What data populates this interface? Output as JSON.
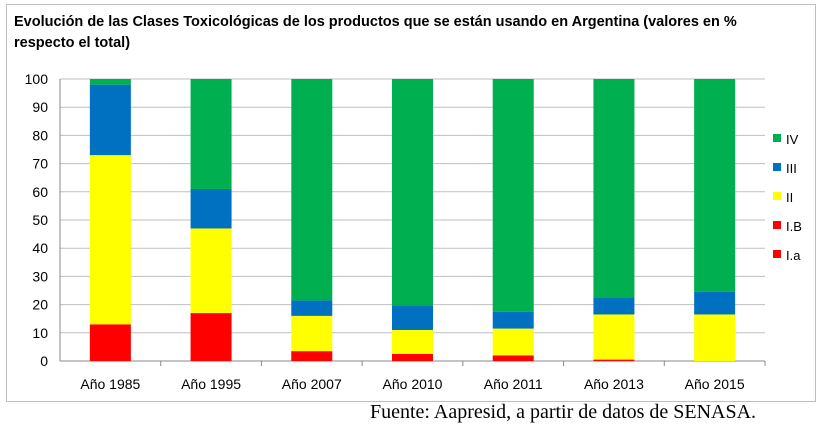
{
  "chart_data": {
    "type": "bar",
    "stacked": true,
    "title": "Evolución de las Clases Toxicológicas de los productos que se están usando en Argentina (valores en % respecto el total)",
    "categories": [
      "Año 1985",
      "Año 1995",
      "Año 2007",
      "Año 2010",
      "Año 2011",
      "Año 2013",
      "Año 2015"
    ],
    "series": [
      {
        "name": "I.a",
        "color": "#ff0000",
        "values": [
          0,
          0,
          0,
          0,
          0,
          0,
          0
        ]
      },
      {
        "name": "I.B",
        "color": "#ff0000",
        "values": [
          13,
          17,
          3.5,
          2.5,
          2,
          0.5,
          0
        ]
      },
      {
        "name": "II",
        "color": "#ffff00",
        "values": [
          60,
          30,
          12.5,
          8.5,
          9.5,
          16,
          16.5
        ]
      },
      {
        "name": "III",
        "color": "#0070c0",
        "values": [
          25,
          14,
          5.5,
          8.5,
          6,
          6,
          8
        ]
      },
      {
        "name": "IV",
        "color": "#00b050",
        "values": [
          2,
          39,
          78.5,
          80.5,
          82.5,
          77.5,
          75.5
        ]
      }
    ],
    "legend_order": [
      "IV",
      "III",
      "II",
      "I.B",
      "I.a"
    ],
    "legend_position": "right",
    "yticks": [
      0,
      10,
      20,
      30,
      40,
      50,
      60,
      70,
      80,
      90,
      100
    ],
    "ylim": [
      0,
      100
    ],
    "grid": true,
    "xlabel": "",
    "ylabel": ""
  },
  "source_note": "Fuente: Aapresid, a partir de datos de SENASA."
}
